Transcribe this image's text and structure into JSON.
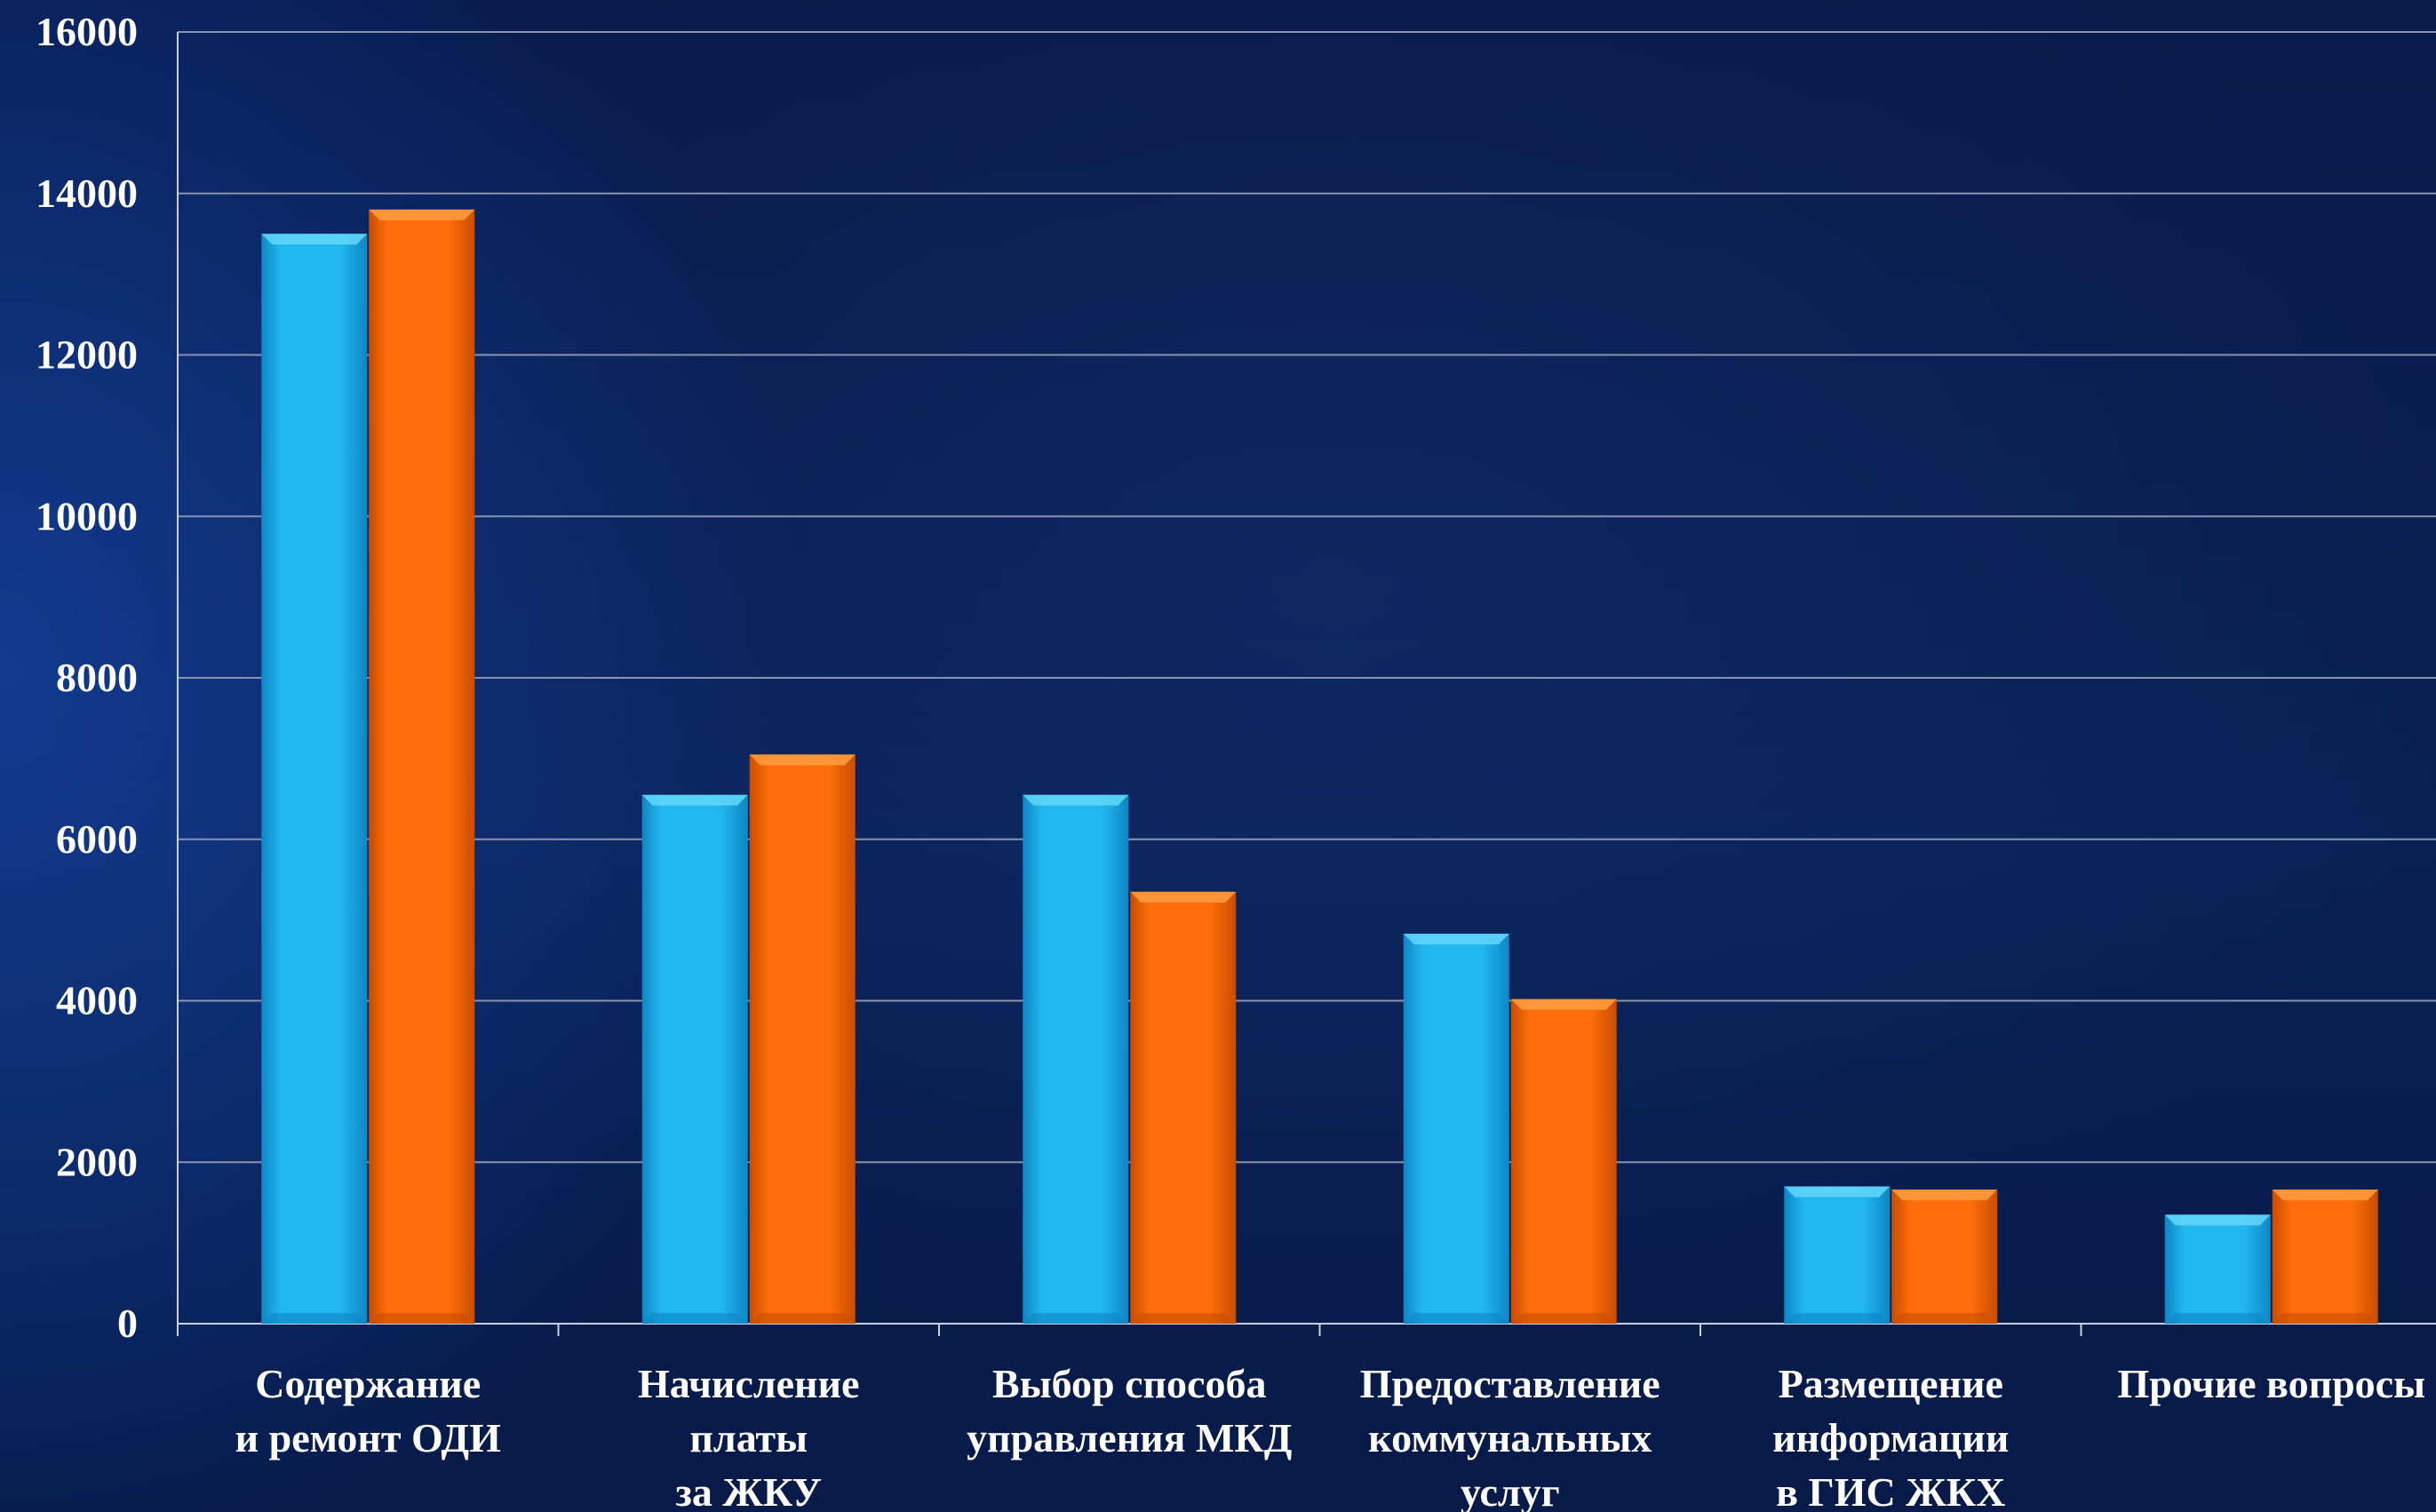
{
  "chart_data": {
    "type": "bar",
    "title": "",
    "xlabel": "",
    "ylabel": "",
    "ylim": [
      0,
      16000
    ],
    "y_ticks": [
      "0",
      "2000",
      "4000",
      "6000",
      "8000",
      "10000",
      "12000",
      "14000",
      "16000"
    ],
    "grid": true,
    "legend": "none",
    "categories": [
      [
        "Содержание",
        "и ремонт ОДИ"
      ],
      [
        "Начисление",
        "платы",
        "за ЖКУ"
      ],
      [
        "Выбор способа",
        "управления МКД"
      ],
      [
        "Предоставление",
        "коммунальных",
        "услуг"
      ],
      [
        "Размещение",
        "информации",
        "в ГИС ЖКХ"
      ],
      [
        "Прочие вопросы"
      ]
    ],
    "series": [
      {
        "values": [
          13500,
          6550,
          6550,
          4830,
          1700,
          1350
        ]
      },
      {
        "values": [
          13800,
          7050,
          5350,
          4020,
          1660,
          1660
        ]
      }
    ],
    "colors": {
      "series_0": "#22b7ee",
      "series_0_dark": "#0d86c4",
      "series_0_light": "#5fd4f8",
      "series_1": "#ff6e0a",
      "series_1_dark": "#c94d00",
      "series_1_light": "#ff9a3f",
      "axis": "#c8cfdd",
      "grid": "#8a93ad",
      "text": "#ffffff"
    }
  }
}
